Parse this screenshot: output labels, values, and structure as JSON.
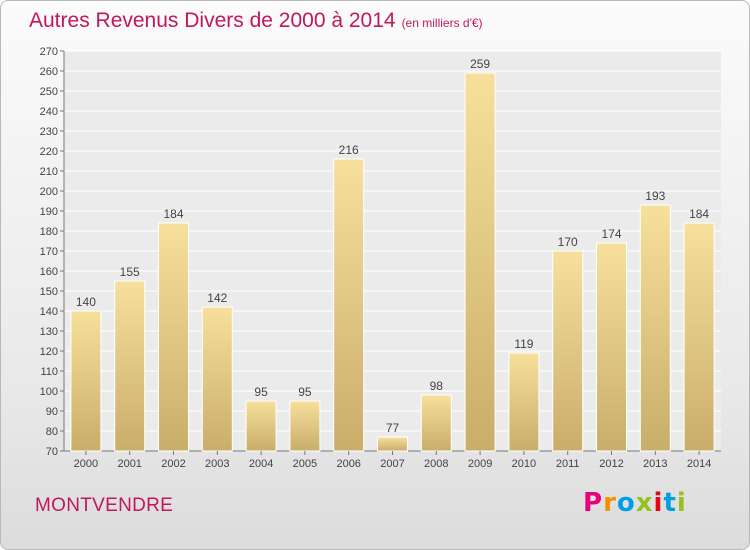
{
  "title": "Autres Revenus Divers de 2000 à 2014",
  "subtitle": "(en milliers d'€)",
  "place": "MONTVENDRE",
  "logo": {
    "text": "Proxiti",
    "colors": [
      "#e6007e",
      "#f39200",
      "#009fe3",
      "#95c11f",
      "#e30613",
      "#009fe3",
      "#95c11f"
    ]
  },
  "colors": {
    "title": "#c2185b",
    "bar": "#ecd493",
    "bar_dark": "#c9ae6a"
  },
  "chart_data": {
    "type": "bar",
    "title": "Autres Revenus Divers de 2000 à 2014",
    "categories": [
      "2000",
      "2001",
      "2002",
      "2003",
      "2004",
      "2005",
      "2006",
      "2007",
      "2008",
      "2009",
      "2010",
      "2011",
      "2012",
      "2013",
      "2014"
    ],
    "values": [
      140,
      155,
      184,
      142,
      95,
      95,
      216,
      77,
      98,
      259,
      119,
      170,
      174,
      193,
      184
    ],
    "ylim": [
      70,
      270
    ],
    "ytick_step": 10,
    "grid": true,
    "legend": "none"
  }
}
